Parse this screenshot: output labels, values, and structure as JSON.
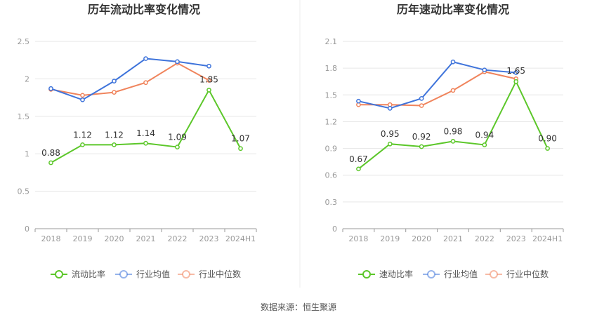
{
  "source_label": "数据来源：恒生聚源",
  "colors": {
    "company": "#5cc72a",
    "industry_avg": "#3f74db",
    "industry_median": "#f0845c"
  },
  "chart_data": [
    {
      "type": "line",
      "title": "历年流动比率变化情况",
      "categories": [
        "2018",
        "2019",
        "2020",
        "2021",
        "2022",
        "2023",
        "2024H1"
      ],
      "ylim": [
        0,
        2.5
      ],
      "yticks": [
        "0",
        "0.5",
        "1",
        "1.5",
        "2",
        "2.5"
      ],
      "grid": true,
      "legend_position": "bottom",
      "series": [
        {
          "name": "流动比率",
          "color": "#5cc72a",
          "values": [
            0.88,
            1.12,
            1.12,
            1.14,
            1.09,
            1.85,
            1.07
          ],
          "labels": [
            "0.88",
            "1.12",
            "1.12",
            "1.14",
            "1.09",
            "1.85",
            "1.07"
          ]
        },
        {
          "name": "行业均值",
          "color": "#3f74db",
          "values": [
            1.87,
            1.72,
            1.97,
            2.27,
            2.23,
            2.17,
            null
          ]
        },
        {
          "name": "行业中位数",
          "color": "#f0845c",
          "values": [
            1.86,
            1.78,
            1.82,
            1.95,
            2.21,
            1.98,
            null
          ]
        }
      ]
    },
    {
      "type": "line",
      "title": "历年速动比率变化情况",
      "categories": [
        "2018",
        "2019",
        "2020",
        "2021",
        "2022",
        "2023",
        "2024H1"
      ],
      "ylim": [
        0,
        2.1
      ],
      "yticks": [
        "0",
        "0.3",
        "0.6",
        "0.9",
        "1.2",
        "1.5",
        "1.8",
        "2.1"
      ],
      "grid": true,
      "legend_position": "bottom",
      "series": [
        {
          "name": "速动比率",
          "color": "#5cc72a",
          "values": [
            0.67,
            0.95,
            0.92,
            0.98,
            0.94,
            1.65,
            0.9
          ],
          "labels": [
            "0.67",
            "0.95",
            "0.92",
            "0.98",
            "0.94",
            "1.65",
            "0.90"
          ]
        },
        {
          "name": "行业均值",
          "color": "#3f74db",
          "values": [
            1.43,
            1.35,
            1.46,
            1.87,
            1.78,
            1.75,
            null
          ]
        },
        {
          "name": "行业中位数",
          "color": "#f0845c",
          "values": [
            1.39,
            1.39,
            1.38,
            1.55,
            1.76,
            1.68,
            null
          ]
        }
      ]
    }
  ]
}
